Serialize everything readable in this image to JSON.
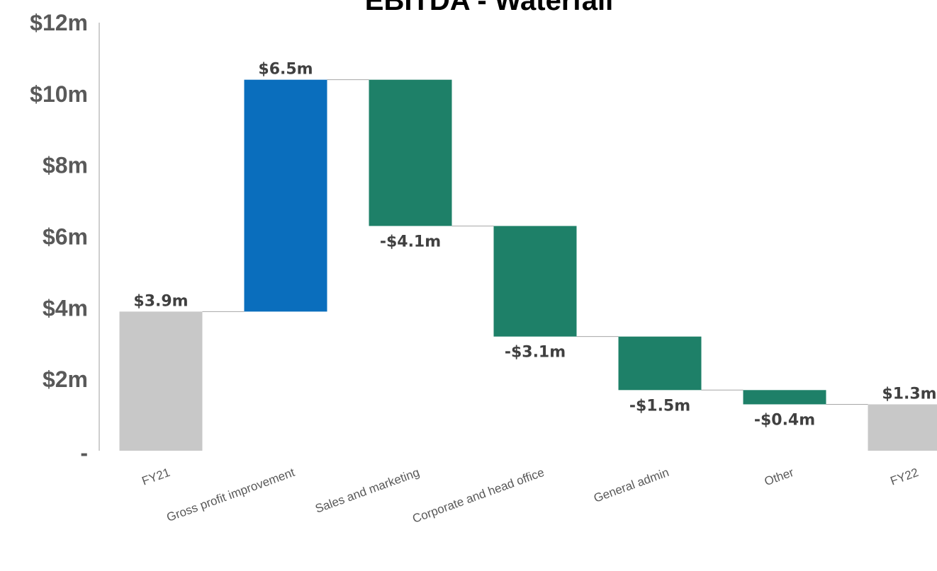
{
  "chart_data": {
    "type": "bar",
    "subtype": "waterfall",
    "title": "EBITDA - Waterfall",
    "categories": [
      "FY21",
      "Gross profit improvement",
      "Sales and marketing",
      "Corporate and head office",
      "General admin",
      "Other",
      "FY22"
    ],
    "values": [
      3.9,
      6.5,
      -4.1,
      -3.1,
      -1.5,
      -0.4,
      1.3
    ],
    "kinds": [
      "total",
      "increase",
      "decrease",
      "decrease",
      "decrease",
      "decrease",
      "total"
    ],
    "data_labels": [
      "$3.9m",
      "$6.5m",
      "-$4.1m",
      "-$3.1m",
      "-$1.5m",
      "-$0.4m",
      "$1.3m"
    ],
    "ylim": [
      0,
      12
    ],
    "yticks": [
      0,
      2,
      4,
      6,
      8,
      10,
      12
    ],
    "ytick_labels": [
      "-",
      "$2m",
      "$4m",
      "$6m",
      "$8m",
      "$10m",
      "$12m"
    ],
    "xlabel": "",
    "ylabel": "",
    "grid": false,
    "legend": "none",
    "colors": {
      "total": "#c8c8c8",
      "increase": "#0a6ebd",
      "decrease": "#1e8068",
      "connector": "#a6a6a6",
      "axis": "#bfbfbf"
    }
  }
}
